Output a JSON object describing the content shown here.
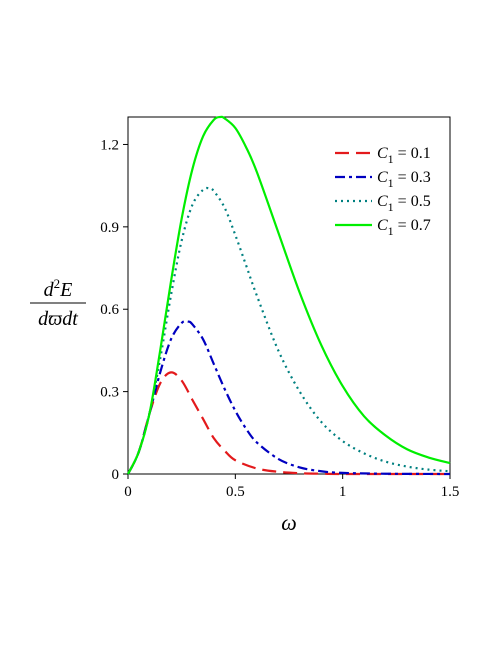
{
  "chart_data": {
    "type": "line",
    "xlabel": "ω",
    "ylabel": {
      "numerator": "d",
      "numerator_sup": "2",
      "numerator_var": "E",
      "denominator": "dϖdt"
    },
    "xlim": [
      0,
      1.5
    ],
    "ylim": [
      0,
      1.3
    ],
    "x_ticks": [
      {
        "value": 0,
        "label": "0"
      },
      {
        "value": 0.5,
        "label": "0.5"
      },
      {
        "value": 1,
        "label": "1"
      },
      {
        "value": 1.5,
        "label": "1.5"
      }
    ],
    "y_ticks": [
      {
        "value": 0,
        "label": "0"
      },
      {
        "value": 0.3,
        "label": "0.3"
      },
      {
        "value": 0.6,
        "label": "0.6"
      },
      {
        "value": 0.9,
        "label": "0.9"
      },
      {
        "value": 1.2,
        "label": "1.2"
      }
    ],
    "grid": false,
    "legend_position": "top-right",
    "series": [
      {
        "name_var": "C",
        "name_sub": "1",
        "name_rest": " = 0.1",
        "color": "#e31a1c",
        "dash": "long-dash",
        "x": [
          0,
          0.05,
          0.1,
          0.15,
          0.2,
          0.25,
          0.3,
          0.35,
          0.4,
          0.45,
          0.5,
          0.6,
          0.7,
          0.8,
          0.9,
          1.0,
          1.2,
          1.5
        ],
        "y": [
          0,
          0.08,
          0.22,
          0.33,
          0.37,
          0.34,
          0.27,
          0.2,
          0.13,
          0.085,
          0.05,
          0.02,
          0.008,
          0.003,
          0.001,
          0,
          0,
          0
        ]
      },
      {
        "name_var": "C",
        "name_sub": "1",
        "name_rest": " = 0.3",
        "color": "#0000c0",
        "dash": "dash-dot",
        "x": [
          0,
          0.05,
          0.1,
          0.15,
          0.2,
          0.25,
          0.28,
          0.3,
          0.35,
          0.4,
          0.45,
          0.5,
          0.55,
          0.6,
          0.7,
          0.8,
          0.9,
          1.0,
          1.2,
          1.5
        ],
        "y": [
          0,
          0.08,
          0.22,
          0.37,
          0.49,
          0.55,
          0.555,
          0.545,
          0.49,
          0.4,
          0.31,
          0.23,
          0.165,
          0.115,
          0.055,
          0.024,
          0.01,
          0.004,
          0.001,
          0
        ]
      },
      {
        "name_var": "C",
        "name_sub": "1",
        "name_rest": " = 0.5",
        "color": "#008080",
        "dash": "dotted",
        "x": [
          0,
          0.05,
          0.1,
          0.15,
          0.2,
          0.25,
          0.3,
          0.35,
          0.38,
          0.4,
          0.45,
          0.5,
          0.55,
          0.6,
          0.7,
          0.8,
          0.9,
          1.0,
          1.1,
          1.2,
          1.3,
          1.4,
          1.5
        ],
        "y": [
          0,
          0.08,
          0.22,
          0.42,
          0.65,
          0.85,
          0.98,
          1.035,
          1.04,
          1.03,
          0.97,
          0.87,
          0.76,
          0.65,
          0.45,
          0.3,
          0.19,
          0.12,
          0.075,
          0.045,
          0.027,
          0.016,
          0.01
        ]
      },
      {
        "name_var": "C",
        "name_sub": "1",
        "name_rest": " = 0.7",
        "color": "#00ee00",
        "dash": "solid",
        "x": [
          0,
          0.05,
          0.1,
          0.15,
          0.2,
          0.25,
          0.3,
          0.35,
          0.4,
          0.43,
          0.45,
          0.5,
          0.55,
          0.6,
          0.7,
          0.8,
          0.9,
          1.0,
          1.1,
          1.2,
          1.3,
          1.4,
          1.5
        ],
        "y": [
          0,
          0.08,
          0.22,
          0.45,
          0.7,
          0.93,
          1.11,
          1.23,
          1.29,
          1.3,
          1.295,
          1.26,
          1.19,
          1.1,
          0.88,
          0.66,
          0.47,
          0.32,
          0.21,
          0.14,
          0.09,
          0.06,
          0.04
        ]
      }
    ]
  }
}
